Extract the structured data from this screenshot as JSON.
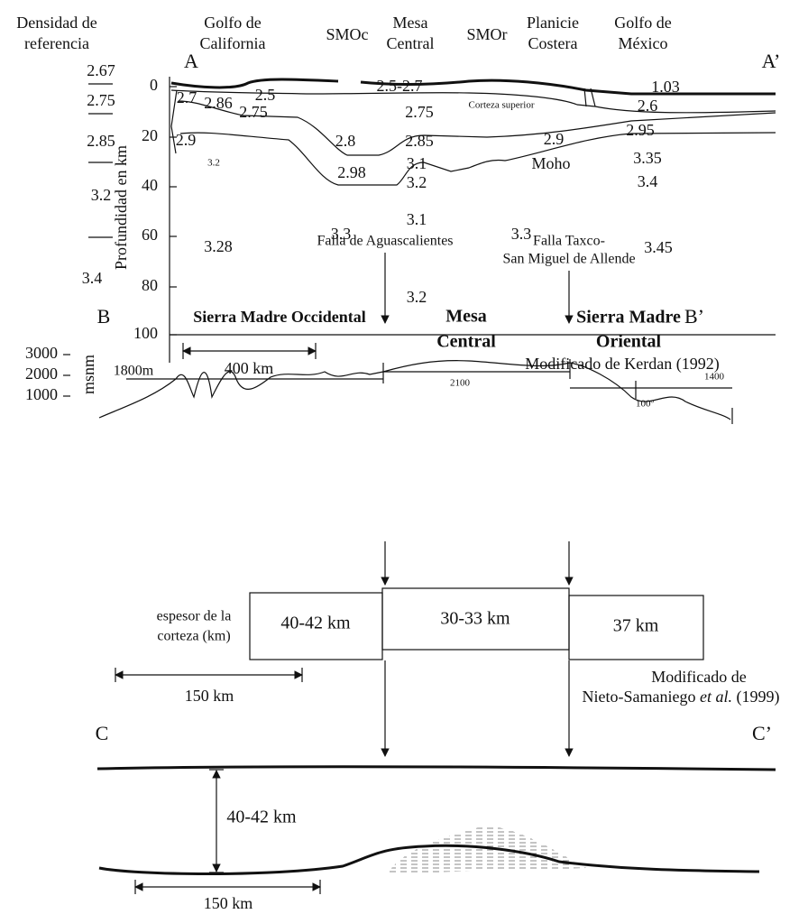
{
  "section_a": {
    "reference_title": [
      "Densidad de",
      "referencia"
    ],
    "reference_densities": [
      "2.67",
      "2.75",
      "2.85",
      "3.2",
      "3.4"
    ],
    "start": "A",
    "end": "A’",
    "regions": [
      [
        "Golfo de",
        "California"
      ],
      [
        "SMOc"
      ],
      [
        "Mesa",
        "Central"
      ],
      [
        "SMOr"
      ],
      [
        "Planicie",
        "Costera"
      ],
      [
        "Golfo de",
        "México"
      ]
    ],
    "y_axis_label": "Profundidad en km",
    "y_ticks": [
      0,
      20,
      40,
      60,
      80,
      100
    ],
    "labels": [
      "2.7",
      "2.86",
      "2.5",
      "2.5-2.7",
      "1.03",
      "2.75",
      "2.75",
      "Corteza superior",
      "2.6",
      "2.9",
      "2.8",
      "2.85",
      "2.9",
      "2.95",
      "3.2",
      "3.1",
      "3.35",
      "2.98",
      "3.2",
      "Moho",
      "3.4",
      "3.1",
      "3.3",
      "3.3",
      "3.28",
      "3.45",
      "3.2"
    ],
    "scale": "400 km",
    "source": "Modificado de Kerdan (1992)"
  },
  "section_b": {
    "start": "B",
    "end": "B’",
    "faults": [
      [
        "Falla de Aguascalientes"
      ],
      [
        "Falla Taxco-",
        "San Miguel de Allende"
      ]
    ],
    "provinces": [
      [
        "Sierra Madre Occidental"
      ],
      [
        "Mesa",
        "Central"
      ],
      [
        "Sierra Madre",
        "Oriental"
      ]
    ],
    "elevation_ticks": [
      3000,
      2000,
      1000
    ],
    "elevation_label": "msnm",
    "profile_labels": [
      "1800m",
      "2100",
      "1400",
      "100º"
    ],
    "thickness_label": [
      "espesor de la",
      "corteza (km)"
    ],
    "thickness": [
      "40-42 km",
      "30-33 km",
      "37 km"
    ],
    "scale": "150 km",
    "source": [
      "Modificado de",
      "Nieto-Samaniego ",
      "et al.",
      " (1999)"
    ]
  },
  "section_c": {
    "start": "C",
    "end": "C’",
    "thickness": "40-42 km",
    "scale": "150 km"
  }
}
